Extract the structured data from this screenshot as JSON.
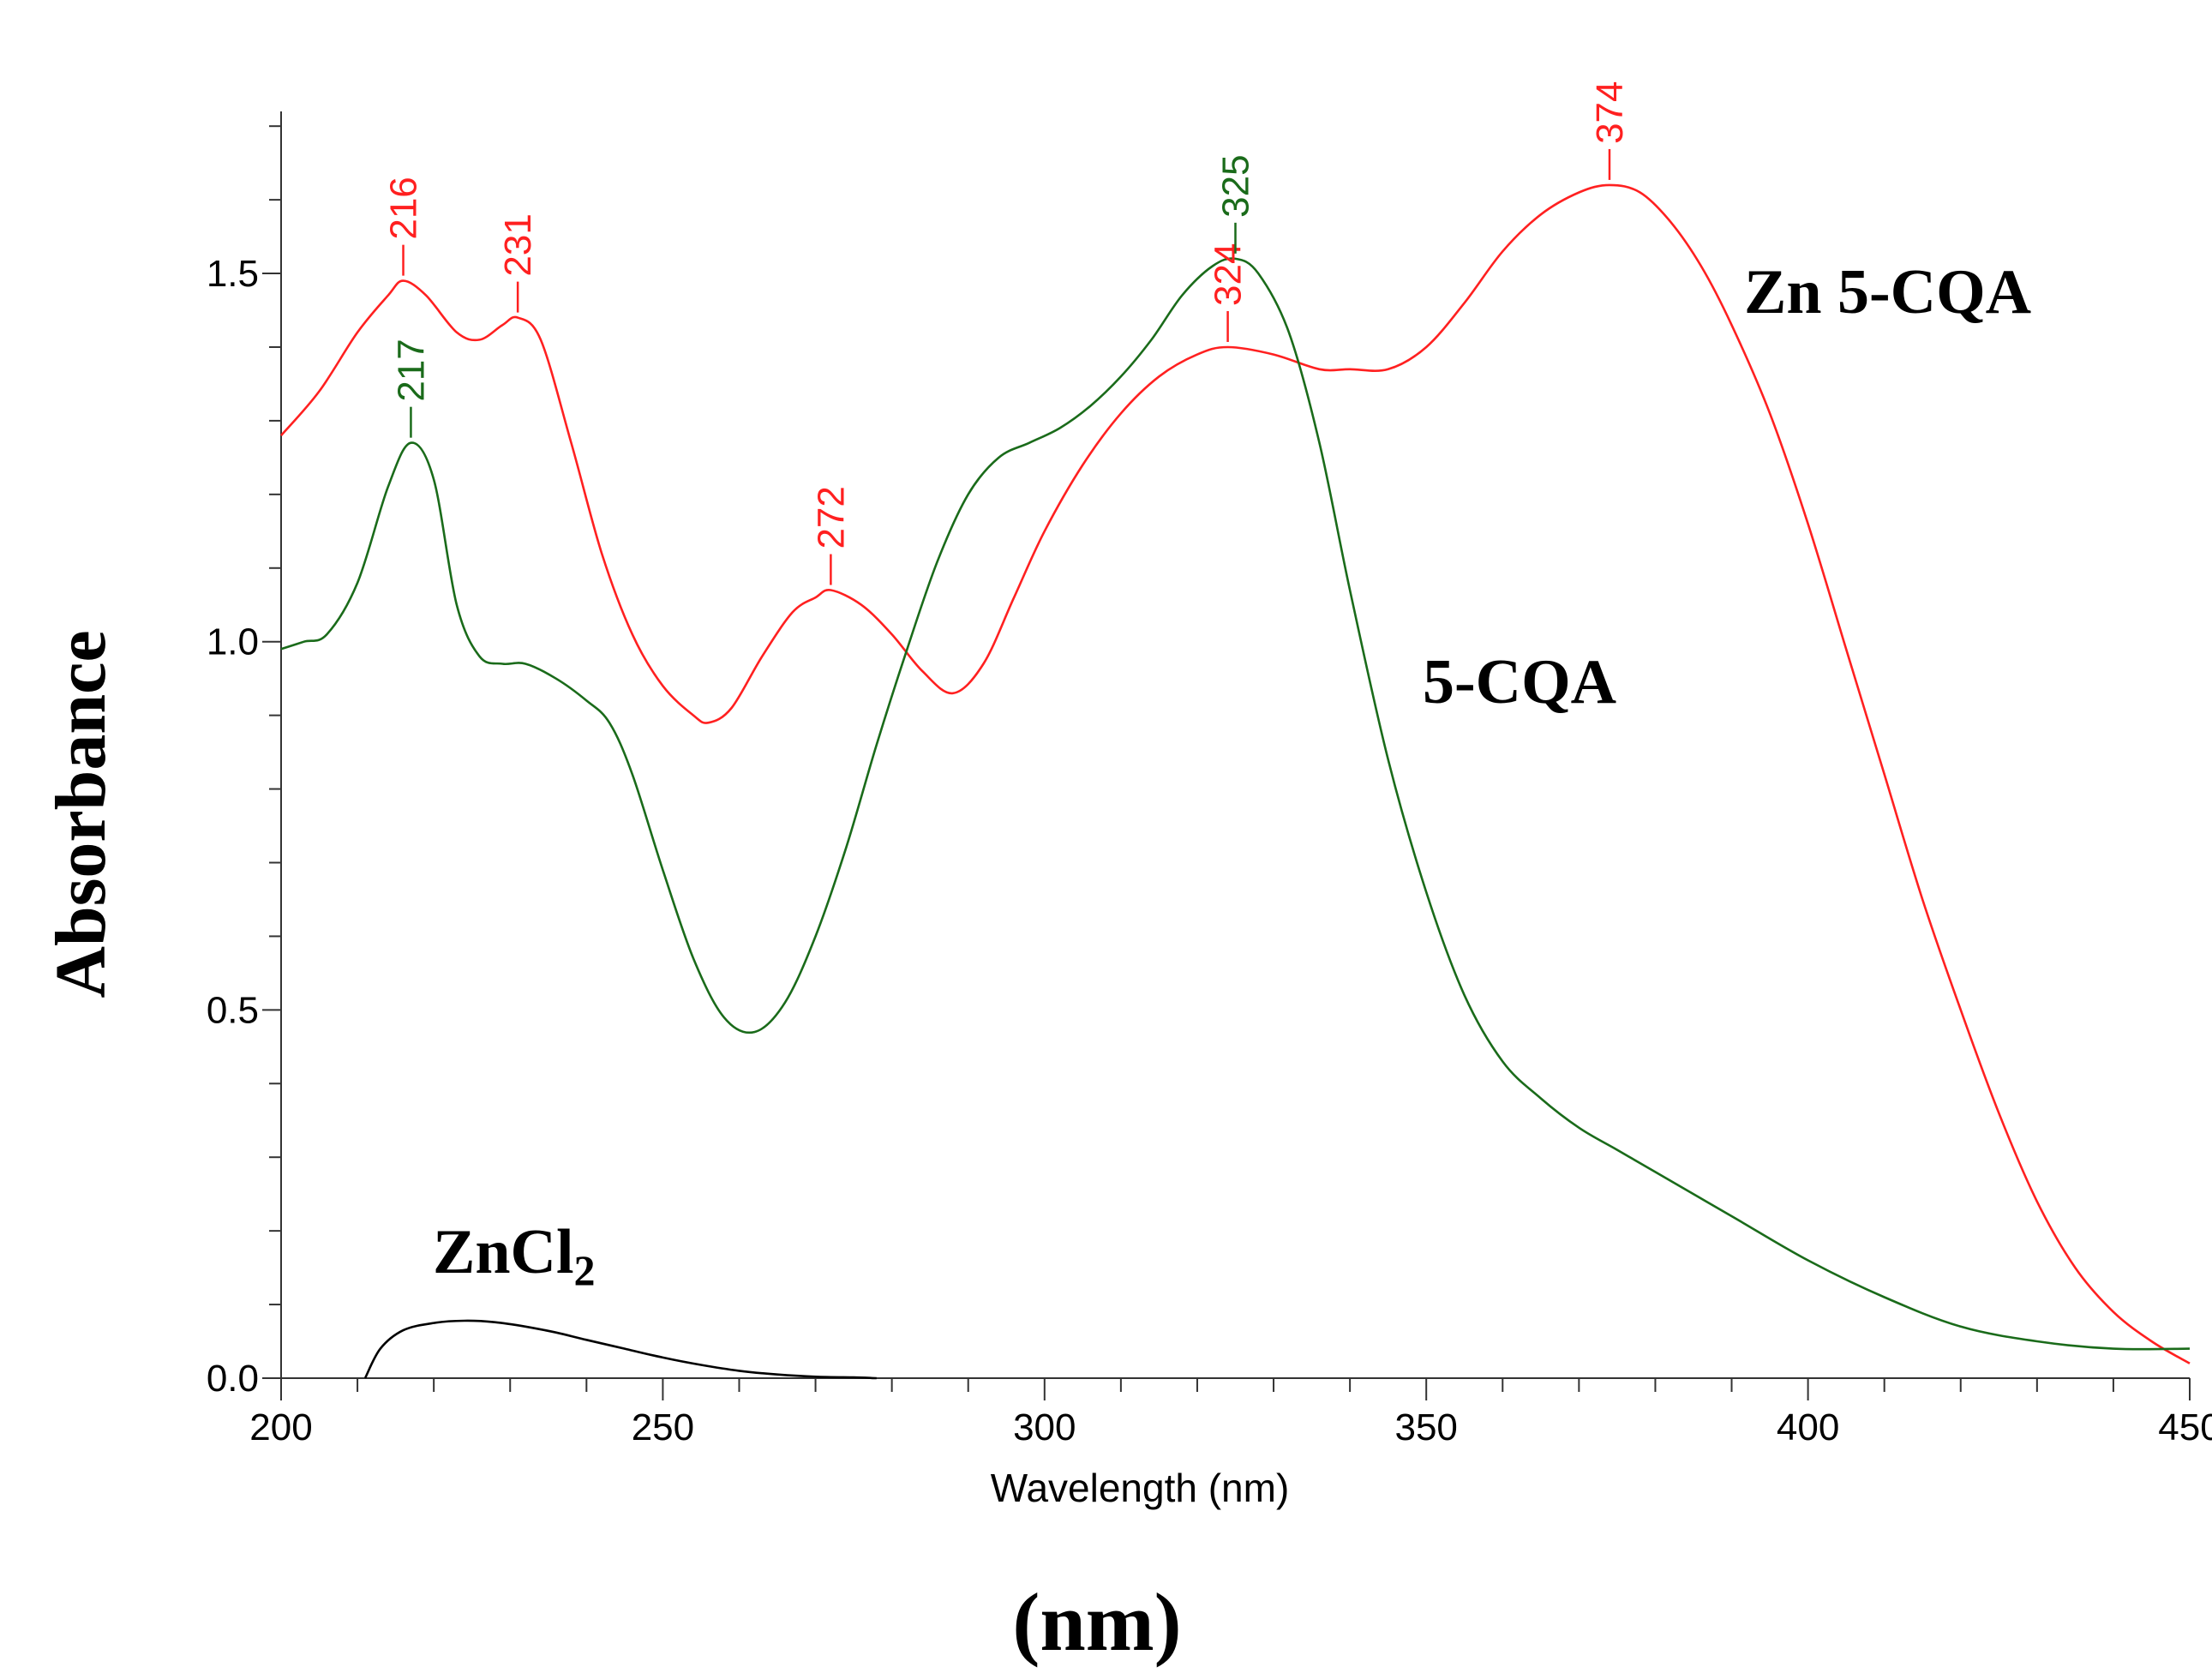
{
  "chart_data": {
    "type": "line",
    "title": "",
    "xlabel": "Wavelength (nm)",
    "ylabel": "Absorbance",
    "bottom_label": "(nm)",
    "xlim": [
      200,
      450
    ],
    "ylim": [
      0.0,
      1.72
    ],
    "x_ticks": [
      200,
      250,
      300,
      350,
      400,
      450
    ],
    "x_tick_labels": [
      "200",
      "250",
      "300",
      "350",
      "400",
      "450"
    ],
    "y_ticks": [
      0.0,
      0.5,
      1.0,
      1.5
    ],
    "y_tick_labels": [
      "0.0",
      "0.5",
      "1.0",
      "1.5"
    ],
    "series": [
      {
        "name": "Zn 5-CQA",
        "label": "Zn 5-CQA",
        "color": "#ff2020",
        "x": [
          200,
          205,
          210,
          214,
          216,
          219,
          223,
          226,
          229,
          231,
          234,
          238,
          242,
          246,
          250,
          254,
          256,
          259,
          263,
          267,
          270,
          272,
          276,
          280,
          284,
          288,
          292,
          296,
          300,
          305,
          310,
          315,
          320,
          324,
          330,
          336,
          340,
          345,
          350,
          355,
          360,
          365,
          370,
          374,
          378,
          382,
          386,
          390,
          395,
          400,
          405,
          410,
          415,
          420,
          425,
          430,
          435,
          440,
          445,
          450
        ],
        "y": [
          1.28,
          1.34,
          1.42,
          1.47,
          1.49,
          1.47,
          1.42,
          1.41,
          1.43,
          1.44,
          1.41,
          1.27,
          1.12,
          1.01,
          0.94,
          0.9,
          0.89,
          0.91,
          0.98,
          1.04,
          1.06,
          1.07,
          1.05,
          1.01,
          0.96,
          0.93,
          0.97,
          1.06,
          1.15,
          1.24,
          1.31,
          1.36,
          1.39,
          1.4,
          1.39,
          1.37,
          1.37,
          1.37,
          1.4,
          1.46,
          1.53,
          1.58,
          1.61,
          1.62,
          1.61,
          1.57,
          1.51,
          1.43,
          1.31,
          1.16,
          0.99,
          0.82,
          0.65,
          0.5,
          0.36,
          0.24,
          0.15,
          0.09,
          0.05,
          0.02
        ]
      },
      {
        "name": "5-CQA",
        "label": "5-CQA",
        "color": "#1a6b1a",
        "x": [
          200,
          203,
          206,
          210,
          214,
          217,
          220,
          223,
          226,
          229,
          232,
          236,
          240,
          243,
          246,
          250,
          254,
          258,
          262,
          266,
          270,
          274,
          278,
          282,
          286,
          290,
          294,
          298,
          302,
          306,
          310,
          314,
          318,
          322,
          325,
          328,
          332,
          336,
          340,
          345,
          350,
          355,
          360,
          365,
          370,
          375,
          380,
          390,
          400,
          410,
          420,
          430,
          440,
          450
        ],
        "y": [
          0.99,
          1.0,
          1.01,
          1.08,
          1.21,
          1.27,
          1.22,
          1.05,
          0.98,
          0.97,
          0.97,
          0.95,
          0.92,
          0.89,
          0.82,
          0.69,
          0.57,
          0.49,
          0.47,
          0.51,
          0.6,
          0.72,
          0.86,
          0.99,
          1.11,
          1.2,
          1.25,
          1.27,
          1.29,
          1.32,
          1.36,
          1.41,
          1.47,
          1.51,
          1.52,
          1.5,
          1.42,
          1.27,
          1.07,
          0.84,
          0.66,
          0.52,
          0.43,
          0.38,
          0.34,
          0.31,
          0.28,
          0.22,
          0.16,
          0.11,
          0.07,
          0.05,
          0.04,
          0.04
        ]
      },
      {
        "name": "ZnCl2",
        "label": "ZnCl",
        "label_subscript": "2",
        "color": "#000000",
        "x": [
          211,
          213,
          216,
          220,
          224,
          228,
          232,
          236,
          240,
          245,
          250,
          255,
          260,
          265,
          270,
          275,
          278
        ],
        "y": [
          0.0,
          0.04,
          0.065,
          0.075,
          0.078,
          0.076,
          0.07,
          0.062,
          0.052,
          0.04,
          0.028,
          0.018,
          0.01,
          0.005,
          0.002,
          0.001,
          0.0
        ]
      }
    ],
    "peak_annotations": [
      {
        "text": "216",
        "x": 216,
        "y": 1.49,
        "color": "#ff2020"
      },
      {
        "text": "231",
        "x": 231,
        "y": 1.44,
        "color": "#ff2020"
      },
      {
        "text": "272",
        "x": 272,
        "y": 1.07,
        "color": "#ff2020"
      },
      {
        "text": "324",
        "x": 324,
        "y": 1.4,
        "color": "#ff2020"
      },
      {
        "text": "374",
        "x": 374,
        "y": 1.62,
        "color": "#ff2020"
      },
      {
        "text": "217",
        "x": 217,
        "y": 1.27,
        "color": "#1a6b1a"
      },
      {
        "text": "325",
        "x": 325,
        "y": 1.52,
        "color": "#1a6b1a"
      }
    ]
  }
}
